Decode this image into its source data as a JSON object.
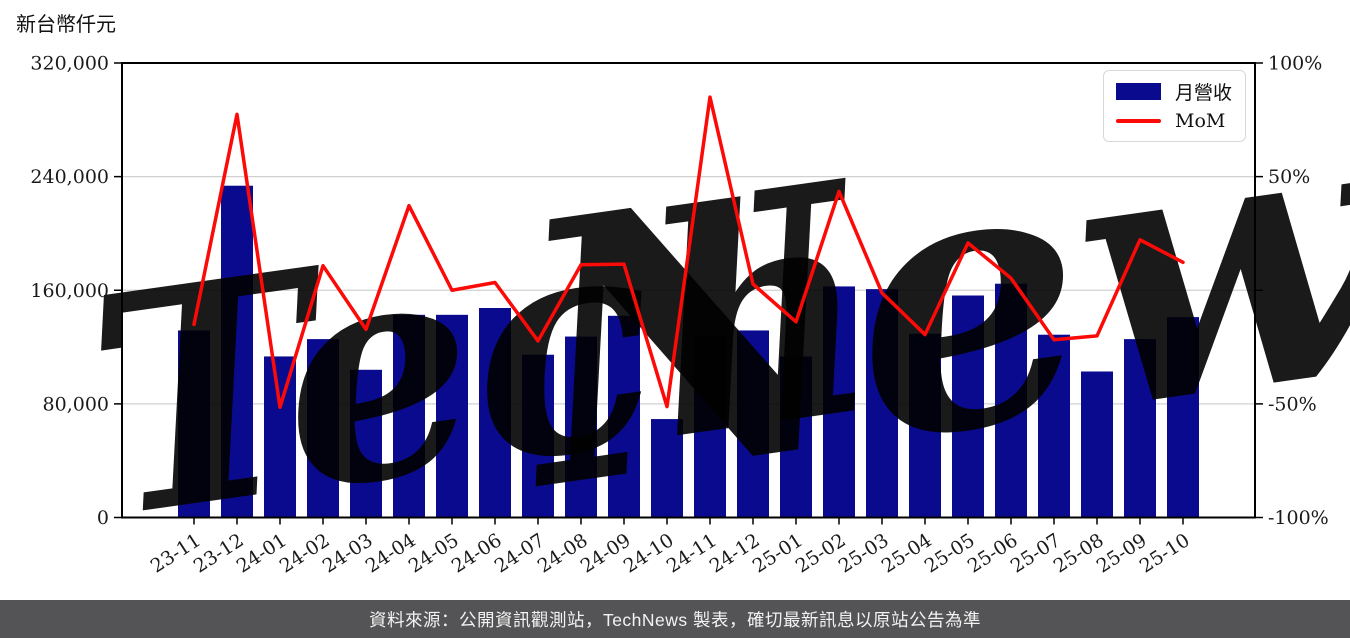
{
  "header": {
    "axis_title": "新台幣仟元"
  },
  "footer": {
    "text": "資料來源：公開資訊觀測站，TechNews 製表，確切最新訊息以原站公告為準",
    "background": "#545456",
    "text_color": "#f2f2f2"
  },
  "watermark": {
    "part1": "Tech",
    "part2": "News",
    "color1": "#ececec",
    "color2": "#f7dede"
  },
  "legend": {
    "position": "top-right",
    "items": [
      {
        "label": "月營收",
        "type": "bar",
        "color": "#0a0a8f"
      },
      {
        "label": "MoM",
        "type": "line",
        "color": "#fb0a07"
      }
    ]
  },
  "chart_data": {
    "type": "bar",
    "combo": "bar+line",
    "title": "新台幣仟元",
    "categories": [
      "23-11",
      "23-12",
      "24-01",
      "24-02",
      "24-03",
      "24-04",
      "24-05",
      "24-06",
      "24-07",
      "24-08",
      "24-09",
      "24-10",
      "24-11",
      "24-12",
      "25-01",
      "25-02",
      "25-03",
      "25-04",
      "25-05",
      "25-06",
      "25-07",
      "25-08",
      "25-09",
      "25-10"
    ],
    "series": [
      {
        "name": "月營收",
        "chart": "bar",
        "axis": "left",
        "unit": "NT$ thousand",
        "color": "#0a0a8f",
        "values": [
          131700,
          233600,
          113400,
          125600,
          104000,
          142700,
          142700,
          147500,
          114600,
          127400,
          142000,
          69300,
          128200,
          131700,
          113400,
          162700,
          160800,
          129400,
          156300,
          164600,
          128700,
          102800,
          125600,
          141100
        ]
      },
      {
        "name": "MoM",
        "chart": "line",
        "axis": "right",
        "unit": "%",
        "color": "#fb0a07",
        "values": [
          -15.0,
          77.4,
          -51.5,
          10.8,
          -17.2,
          37.2,
          0.0,
          3.4,
          -22.3,
          11.2,
          11.5,
          -51.2,
          85.0,
          2.7,
          -13.9,
          43.5,
          -1.2,
          -19.5,
          20.8,
          5.3,
          -21.8,
          -20.1,
          22.2,
          12.3
        ]
      }
    ],
    "left_axis": {
      "title": "新台幣仟元",
      "min": 0,
      "max": 320000,
      "tick_labels_bottom_to_top": [
        "0",
        "80,000",
        "160,000",
        "240,000",
        "320,000"
      ]
    },
    "right_axis": {
      "min": -100,
      "max": 100,
      "tick_labels_bottom_to_top": [
        "-100%",
        "-50%",
        "0%",
        "50%",
        "100%"
      ]
    },
    "grid": "horizontal",
    "x_tick_rotation_deg": 33,
    "legend_position": "top-right"
  }
}
